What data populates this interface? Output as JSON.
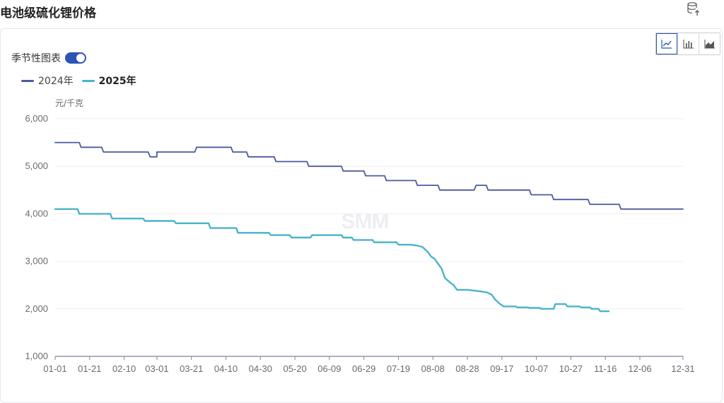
{
  "title": "电池级硫化锂价格",
  "seasonal_label": "季节性图表",
  "unit_label": "元/千克",
  "watermark": "SMM",
  "icons": {
    "export": "database-export-icon",
    "line_chart": "line-chart-icon",
    "bar_chart": "bar-chart-icon",
    "area_chart": "area-chart-icon"
  },
  "chart_data": {
    "type": "line",
    "title": "电池级硫化锂价格",
    "ylabel": "元/千克",
    "xlabel": "",
    "ylim": [
      1000,
      6000
    ],
    "y_ticks": [
      "6,000",
      "5,000",
      "4,000",
      "3,000",
      "2,000",
      "1,000"
    ],
    "x_ticks": [
      "01-01",
      "01-21",
      "02-10",
      "03-01",
      "03-21",
      "04-10",
      "04-30",
      "05-20",
      "06-09",
      "06-29",
      "07-19",
      "08-08",
      "08-28",
      "09-17",
      "10-07",
      "10-27",
      "11-16",
      "12-06",
      "12-31"
    ],
    "grid": true,
    "legend": "top-left",
    "series": [
      {
        "name": "2024年",
        "color": "#4a5aa0",
        "points": [
          [
            "01-01",
            5500
          ],
          [
            "01-15",
            5500
          ],
          [
            "01-16",
            5400
          ],
          [
            "01-28",
            5400
          ],
          [
            "01-29",
            5300
          ],
          [
            "02-24",
            5300
          ],
          [
            "02-25",
            5200
          ],
          [
            "02-29",
            5200
          ],
          [
            "03-01",
            5300
          ],
          [
            "03-23",
            5300
          ],
          [
            "03-24",
            5400
          ],
          [
            "04-13",
            5400
          ],
          [
            "04-14",
            5300
          ],
          [
            "04-22",
            5300
          ],
          [
            "04-23",
            5200
          ],
          [
            "05-08",
            5200
          ],
          [
            "05-09",
            5100
          ],
          [
            "05-27",
            5100
          ],
          [
            "05-28",
            5000
          ],
          [
            "06-16",
            5000
          ],
          [
            "06-17",
            4900
          ],
          [
            "06-29",
            4900
          ],
          [
            "06-30",
            4800
          ],
          [
            "07-11",
            4800
          ],
          [
            "07-12",
            4700
          ],
          [
            "07-29",
            4700
          ],
          [
            "07-30",
            4600
          ],
          [
            "08-11",
            4600
          ],
          [
            "08-12",
            4500
          ],
          [
            "09-01",
            4500
          ],
          [
            "09-02",
            4600
          ],
          [
            "09-08",
            4600
          ],
          [
            "09-09",
            4500
          ],
          [
            "10-03",
            4500
          ],
          [
            "10-04",
            4400
          ],
          [
            "10-16",
            4400
          ],
          [
            "10-17",
            4300
          ],
          [
            "11-06",
            4300
          ],
          [
            "11-07",
            4200
          ],
          [
            "11-24",
            4200
          ],
          [
            "11-25",
            4100
          ],
          [
            "12-31",
            4100
          ]
        ]
      },
      {
        "name": "2025年",
        "color": "#4ab3cc",
        "points": [
          [
            "01-01",
            4100
          ],
          [
            "01-14",
            4100
          ],
          [
            "01-15",
            4000
          ],
          [
            "02-02",
            4000
          ],
          [
            "02-03",
            3900
          ],
          [
            "02-21",
            3900
          ],
          [
            "02-22",
            3850
          ],
          [
            "03-11",
            3850
          ],
          [
            "03-12",
            3800
          ],
          [
            "03-31",
            3800
          ],
          [
            "04-01",
            3700
          ],
          [
            "04-16",
            3700
          ],
          [
            "04-17",
            3600
          ],
          [
            "05-05",
            3600
          ],
          [
            "05-06",
            3550
          ],
          [
            "05-17",
            3550
          ],
          [
            "05-18",
            3500
          ],
          [
            "05-29",
            3500
          ],
          [
            "05-30",
            3550
          ],
          [
            "06-16",
            3550
          ],
          [
            "06-17",
            3500
          ],
          [
            "06-22",
            3500
          ],
          [
            "06-23",
            3450
          ],
          [
            "07-04",
            3450
          ],
          [
            "07-05",
            3400
          ],
          [
            "07-18",
            3400
          ],
          [
            "07-19",
            3350
          ],
          [
            "07-26",
            3350
          ],
          [
            "07-30",
            3330
          ],
          [
            "08-02",
            3300
          ],
          [
            "08-05",
            3200
          ],
          [
            "08-07",
            3100
          ],
          [
            "08-09",
            3050
          ],
          [
            "08-11",
            2950
          ],
          [
            "08-13",
            2850
          ],
          [
            "08-15",
            2650
          ],
          [
            "08-18",
            2550
          ],
          [
            "08-20",
            2500
          ],
          [
            "08-22",
            2400
          ],
          [
            "08-28",
            2400
          ],
          [
            "09-04",
            2370
          ],
          [
            "09-08",
            2350
          ],
          [
            "09-11",
            2300
          ],
          [
            "09-13",
            2200
          ],
          [
            "09-16",
            2100
          ],
          [
            "09-18",
            2050
          ],
          [
            "09-25",
            2050
          ],
          [
            "09-26",
            2030
          ],
          [
            "10-02",
            2030
          ],
          [
            "10-03",
            2020
          ],
          [
            "10-09",
            2020
          ],
          [
            "10-10",
            2000
          ],
          [
            "10-17",
            2000
          ],
          [
            "10-18",
            2100
          ],
          [
            "10-24",
            2100
          ],
          [
            "10-25",
            2050
          ],
          [
            "11-01",
            2050
          ],
          [
            "11-02",
            2030
          ],
          [
            "11-07",
            2030
          ],
          [
            "11-08",
            2000
          ],
          [
            "11-12",
            2000
          ],
          [
            "11-13",
            1950
          ],
          [
            "11-18",
            1950
          ]
        ]
      }
    ]
  }
}
